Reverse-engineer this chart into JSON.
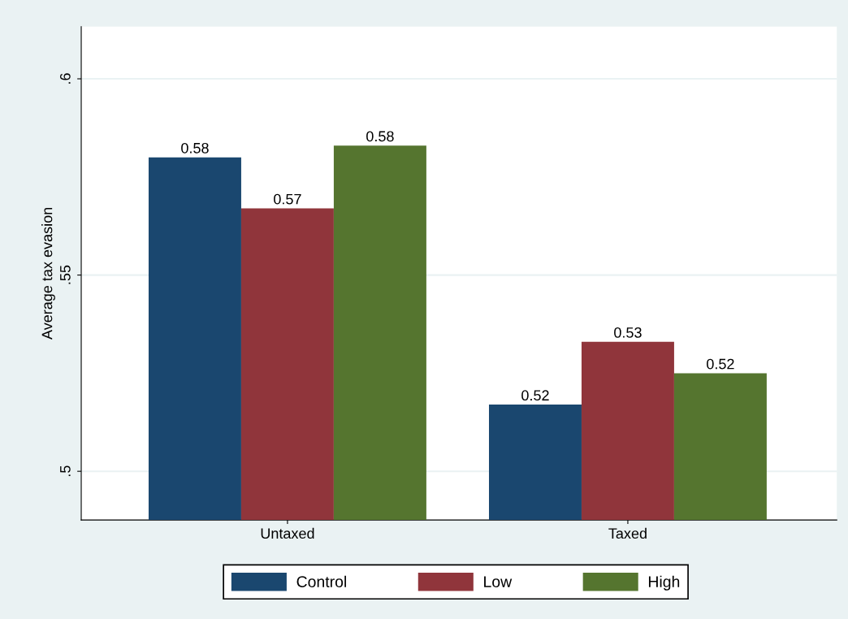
{
  "chart_data": {
    "type": "bar",
    "ylabel": "Average tax evasion",
    "categories": [
      "Untaxed",
      "Taxed"
    ],
    "series": [
      {
        "name": "Control",
        "color": "#1a476f",
        "values": [
          0.58,
          0.517
        ],
        "value_labels": [
          "0.58",
          "0.52"
        ]
      },
      {
        "name": "Low",
        "color": "#90353b",
        "values": [
          0.567,
          0.533
        ],
        "value_labels": [
          "0.57",
          "0.53"
        ]
      },
      {
        "name": "High",
        "color": "#55752f",
        "values": [
          0.583,
          0.525
        ],
        "value_labels": [
          "0.58",
          "0.52"
        ]
      }
    ],
    "ylim": [
      0.4876,
      0.6133
    ],
    "yticks": [
      {
        "value": 0.5,
        "label": ".5"
      },
      {
        "value": 0.55,
        "label": ".55"
      },
      {
        "value": 0.6,
        "label": ".6"
      }
    ],
    "grid": "y",
    "legend": "bottom"
  }
}
